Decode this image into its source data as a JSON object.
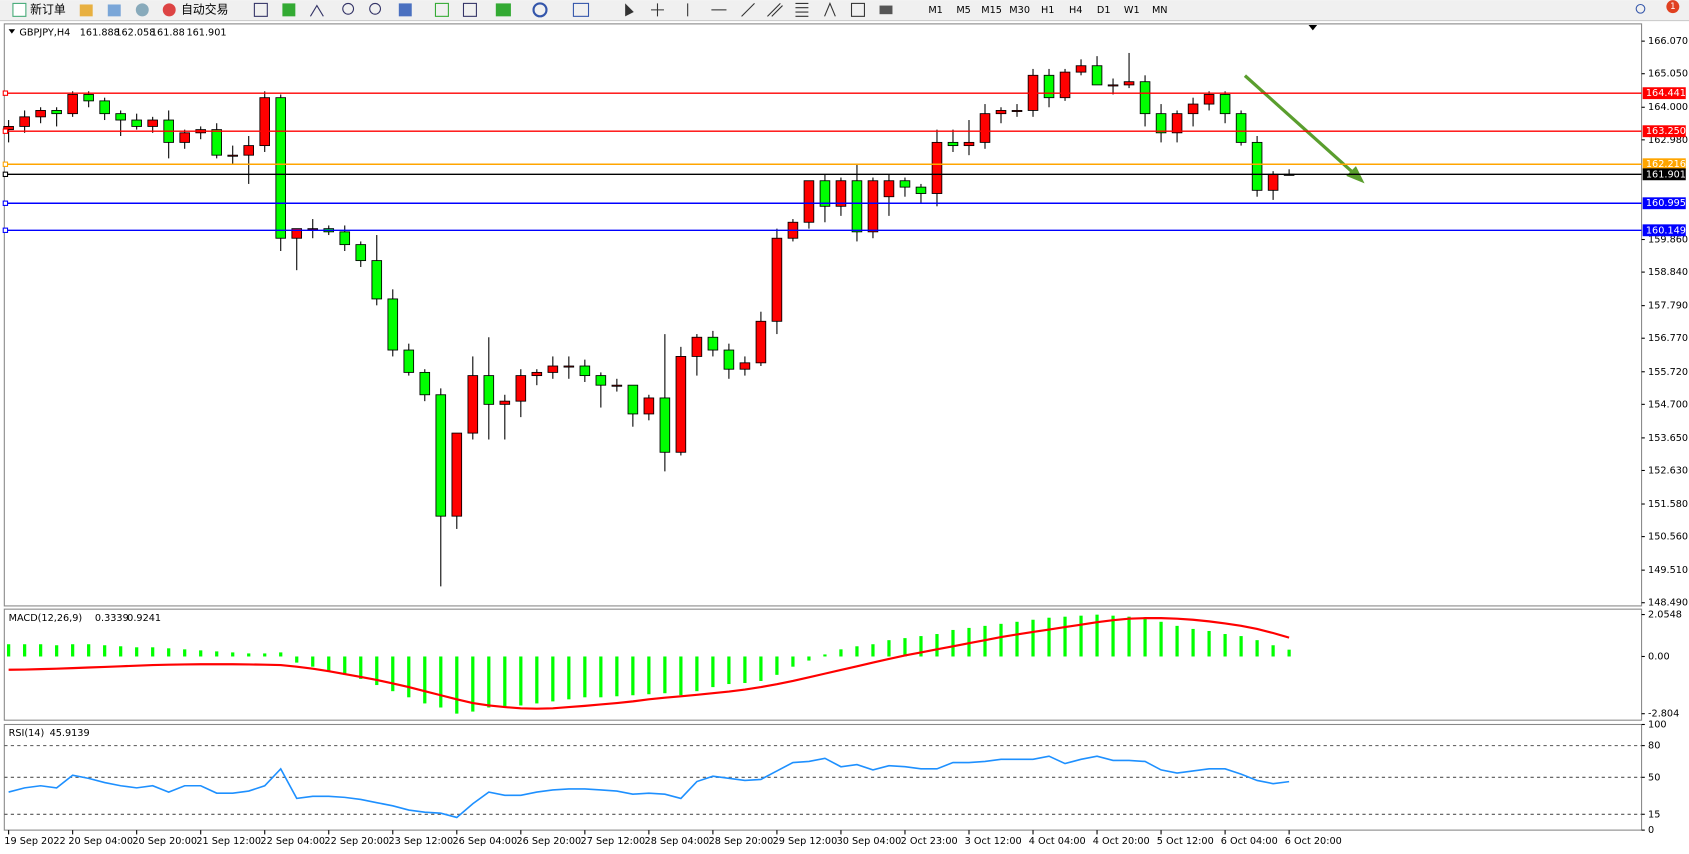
{
  "toolbar": {
    "buttons": [
      "新订单",
      "自动交易"
    ],
    "timeframes": [
      "M1",
      "M5",
      "M15",
      "M30",
      "H1",
      "H4",
      "D1",
      "W1",
      "MN"
    ],
    "badge": "1"
  },
  "chart_data": [
    {
      "type": "candlestick",
      "symbol": "GBPJPY,H4",
      "categories": [
        "19 Sep 2022",
        null,
        null,
        null,
        "20 Sep 04:00",
        null,
        null,
        null,
        "20 Sep 20:00",
        null,
        null,
        null,
        "21 Sep 12:00",
        null,
        null,
        null,
        "22 Sep 04:00",
        null,
        null,
        null,
        "22 Sep 20:00",
        null,
        null,
        null,
        "23 Sep 12:00",
        null,
        null,
        null,
        "26 Sep 04:00",
        null,
        null,
        null,
        "26 Sep 20:00",
        null,
        null,
        null,
        "27 Sep 12:00",
        null,
        null,
        null,
        "28 Sep 04:00",
        null,
        null,
        null,
        "28 Sep 20:00",
        null,
        null,
        null,
        "29 Sep 12:00",
        null,
        null,
        null,
        "30 Sep 04:00",
        null,
        null,
        null,
        "2 Oct 23:00",
        null,
        null,
        null,
        "3 Oct 12:00",
        null,
        null,
        null,
        "4 Oct 04:00",
        null,
        null,
        null,
        "4 Oct 20:00",
        null,
        null,
        null,
        "5 Oct 12:00",
        null,
        null,
        null,
        "6 Oct 04:00",
        null,
        null,
        null,
        "6 Oct 20:00"
      ],
      "open": [
        163.3,
        163.4,
        163.7,
        163.9,
        163.8,
        164.4,
        164.2,
        163.8,
        163.6,
        163.4,
        163.6,
        162.9,
        163.2,
        163.3,
        162.5,
        162.5,
        162.8,
        164.3,
        159.9,
        160.2,
        160.2,
        160.1,
        159.7,
        159.2,
        158.0,
        156.4,
        155.7,
        155.0,
        151.2,
        153.8,
        155.6,
        154.7,
        154.8,
        155.6,
        155.7,
        155.9,
        155.9,
        155.6,
        155.3,
        155.3,
        154.4,
        154.9,
        153.2,
        156.2,
        156.8,
        156.4,
        155.8,
        156.0,
        157.3,
        159.9,
        160.4,
        161.7,
        160.9,
        161.7,
        160.1,
        161.2,
        161.7,
        161.5,
        161.3,
        162.9,
        162.8,
        162.9,
        163.8,
        163.9,
        163.9,
        165.0,
        164.3,
        165.1,
        165.3,
        164.7,
        164.7,
        164.8,
        163.8,
        163.2,
        163.8,
        164.1,
        164.4,
        163.8,
        162.9,
        161.4,
        161.888
      ],
      "high": [
        163.6,
        163.9,
        164.0,
        164.0,
        164.5,
        164.5,
        164.3,
        163.9,
        163.8,
        163.7,
        163.9,
        163.3,
        163.4,
        163.5,
        162.8,
        163.1,
        164.5,
        164.4,
        160.2,
        160.5,
        160.3,
        160.3,
        159.8,
        160.0,
        158.3,
        156.6,
        155.8,
        155.2,
        153.8,
        156.2,
        156.8,
        155.0,
        155.8,
        155.8,
        156.2,
        156.2,
        156.1,
        155.7,
        155.5,
        155.3,
        155.0,
        156.9,
        156.5,
        156.9,
        157.0,
        156.6,
        156.2,
        157.6,
        160.2,
        160.5,
        161.7,
        161.9,
        161.8,
        162.2,
        161.8,
        161.9,
        161.8,
        161.6,
        163.3,
        163.3,
        163.6,
        164.1,
        164.0,
        164.1,
        165.2,
        165.2,
        165.2,
        165.5,
        165.6,
        164.9,
        165.7,
        165.0,
        164.1,
        163.9,
        164.3,
        164.5,
        164.5,
        163.9,
        163.1,
        162.0,
        162.058
      ],
      "low": [
        162.9,
        163.2,
        163.5,
        163.4,
        163.7,
        164.0,
        163.6,
        163.1,
        163.3,
        163.2,
        162.4,
        162.7,
        163.0,
        162.4,
        162.2,
        161.6,
        162.6,
        159.5,
        158.9,
        159.9,
        160.0,
        159.5,
        159.0,
        157.8,
        156.2,
        155.6,
        154.8,
        149.0,
        150.8,
        153.6,
        153.6,
        153.6,
        154.3,
        155.3,
        155.5,
        155.5,
        155.4,
        154.6,
        155.1,
        154.0,
        154.2,
        152.6,
        153.1,
        155.6,
        156.2,
        155.5,
        155.6,
        155.9,
        156.9,
        159.8,
        160.2,
        160.4,
        160.6,
        159.8,
        159.9,
        160.6,
        161.2,
        161.0,
        160.9,
        162.6,
        162.5,
        162.7,
        163.5,
        163.7,
        163.7,
        164.0,
        164.2,
        165.0,
        164.7,
        164.4,
        164.6,
        163.4,
        162.9,
        162.9,
        163.4,
        163.9,
        163.5,
        162.8,
        161.2,
        161.1,
        161.88
      ],
      "close": [
        163.4,
        163.7,
        163.9,
        163.8,
        164.4,
        164.2,
        163.8,
        163.6,
        163.4,
        163.6,
        162.9,
        163.2,
        163.3,
        162.5,
        162.5,
        162.8,
        164.3,
        159.9,
        160.2,
        160.2,
        160.1,
        159.7,
        159.2,
        158.0,
        156.4,
        155.7,
        155.0,
        151.2,
        153.8,
        155.6,
        154.7,
        154.8,
        155.6,
        155.7,
        155.9,
        155.9,
        155.6,
        155.3,
        155.3,
        154.4,
        154.9,
        153.2,
        156.2,
        156.8,
        156.4,
        155.8,
        156.0,
        157.3,
        159.9,
        160.4,
        161.7,
        160.9,
        161.7,
        160.1,
        161.7,
        161.7,
        161.5,
        161.3,
        162.9,
        162.8,
        162.9,
        163.8,
        163.9,
        163.9,
        165.0,
        164.3,
        165.1,
        165.3,
        164.7,
        164.7,
        164.8,
        163.8,
        163.2,
        163.8,
        164.1,
        164.4,
        163.8,
        162.9,
        161.4,
        161.9,
        161.901
      ],
      "up_color": "#ff0000",
      "down_color": "#00ff00",
      "ylim": [
        148.39,
        166.61
      ],
      "yticks": [
        {
          "value": 166.07,
          "label": "166.070"
        },
        {
          "value": 165.05,
          "label": "165.050"
        },
        {
          "value": 164.0,
          "label": "164.000"
        },
        {
          "value": 162.98,
          "label": "162.980"
        },
        {
          "value": 159.86,
          "label": "159.860"
        },
        {
          "value": 158.84,
          "label": "158.840"
        },
        {
          "value": 157.79,
          "label": "157.790"
        },
        {
          "value": 156.77,
          "label": "156.770"
        },
        {
          "value": 155.72,
          "label": "155.720"
        },
        {
          "value": 154.7,
          "label": "154.700"
        },
        {
          "value": 153.65,
          "label": "153.650"
        },
        {
          "value": 152.63,
          "label": "152.630"
        },
        {
          "value": 151.58,
          "label": "151.580"
        },
        {
          "value": 150.56,
          "label": "150.560"
        },
        {
          "value": 149.51,
          "label": "149.510"
        },
        {
          "value": 148.49,
          "label": "148.490"
        }
      ],
      "levels": [
        {
          "value": 164.441,
          "label": "164.441",
          "color": "#ff0000"
        },
        {
          "value": 163.25,
          "label": "163.250",
          "color": "#ff0000"
        },
        {
          "value": 162.216,
          "label": "162.216",
          "color": "#ffa500"
        },
        {
          "value": 161.901,
          "label": "161.901",
          "color": "#000000"
        },
        {
          "value": 160.995,
          "label": "160.995",
          "color": "#0000ff"
        },
        {
          "value": 160.149,
          "label": "160.149",
          "color": "#0000ff"
        }
      ]
    },
    {
      "type": "macd",
      "name": "MACD(12,26,9)",
      "histogram": [
        0.6,
        0.6,
        0.6,
        0.55,
        0.6,
        0.6,
        0.55,
        0.5,
        0.45,
        0.45,
        0.4,
        0.35,
        0.3,
        0.25,
        0.2,
        0.15,
        0.15,
        0.2,
        -0.3,
        -0.5,
        -0.7,
        -0.9,
        -1.1,
        -1.4,
        -1.7,
        -2.0,
        -2.3,
        -2.5,
        -2.8,
        -2.7,
        -2.5,
        -2.5,
        -2.4,
        -2.3,
        -2.2,
        -2.1,
        -2.0,
        -2.0,
        -1.95,
        -1.9,
        -1.85,
        -1.8,
        -1.9,
        -1.7,
        -1.5,
        -1.35,
        -1.3,
        -1.2,
        -0.9,
        -0.5,
        -0.2,
        0.1,
        0.35,
        0.5,
        0.6,
        0.8,
        0.9,
        1.0,
        1.1,
        1.3,
        1.4,
        1.5,
        1.6,
        1.7,
        1.8,
        1.9,
        1.95,
        2.0,
        2.05,
        2.0,
        1.95,
        1.9,
        1.7,
        1.5,
        1.35,
        1.25,
        1.1,
        1.0,
        0.8,
        0.55,
        0.3339
      ],
      "signal": [
        -0.65,
        -0.64,
        -0.62,
        -0.6,
        -0.57,
        -0.54,
        -0.51,
        -0.48,
        -0.45,
        -0.42,
        -0.4,
        -0.39,
        -0.38,
        -0.38,
        -0.38,
        -0.39,
        -0.4,
        -0.42,
        -0.5,
        -0.6,
        -0.72,
        -0.86,
        -1.0,
        -1.15,
        -1.32,
        -1.5,
        -1.7,
        -1.9,
        -2.1,
        -2.28,
        -2.4,
        -2.48,
        -2.54,
        -2.56,
        -2.54,
        -2.48,
        -2.42,
        -2.35,
        -2.28,
        -2.2,
        -2.1,
        -2.02,
        -1.95,
        -1.88,
        -1.8,
        -1.72,
        -1.62,
        -1.5,
        -1.36,
        -1.2,
        -1.02,
        -0.84,
        -0.66,
        -0.48,
        -0.3,
        -0.12,
        0.05,
        0.2,
        0.35,
        0.5,
        0.65,
        0.8,
        0.95,
        1.08,
        1.2,
        1.32,
        1.44,
        1.56,
        1.68,
        1.78,
        1.85,
        1.88,
        1.88,
        1.85,
        1.8,
        1.72,
        1.62,
        1.5,
        1.35,
        1.15,
        0.9241
      ],
      "bar_color": "#00ff00",
      "line_color": "#ff0000",
      "ylim": [
        -3.121,
        2.319
      ],
      "yticks": [
        2.0548,
        {
          "value": 0,
          "label": "0.00"
        },
        -2.804
      ]
    },
    {
      "type": "line",
      "name": "RSI(14)",
      "values": [
        36,
        40,
        42,
        40,
        52,
        49,
        45,
        42,
        40,
        42,
        36,
        42,
        42,
        35,
        35,
        37,
        42,
        58,
        30,
        32,
        32,
        31,
        29,
        26,
        23,
        19,
        17,
        16,
        12,
        25,
        36,
        33,
        33,
        36,
        38,
        39,
        39,
        38,
        37,
        34,
        35,
        34,
        30,
        46,
        51,
        49,
        47,
        48,
        56,
        64,
        65,
        68,
        60,
        62,
        57,
        61,
        60,
        58,
        58,
        64,
        64,
        65,
        67,
        67,
        67,
        70,
        63,
        67,
        70,
        66,
        66,
        65,
        57,
        54,
        56,
        58,
        58,
        53,
        47,
        44,
        45.9139
      ],
      "color": "#1e90ff",
      "ylim": [
        0,
        100
      ],
      "yticks": [
        0,
        15,
        50,
        80,
        100
      ]
    }
  ]
}
